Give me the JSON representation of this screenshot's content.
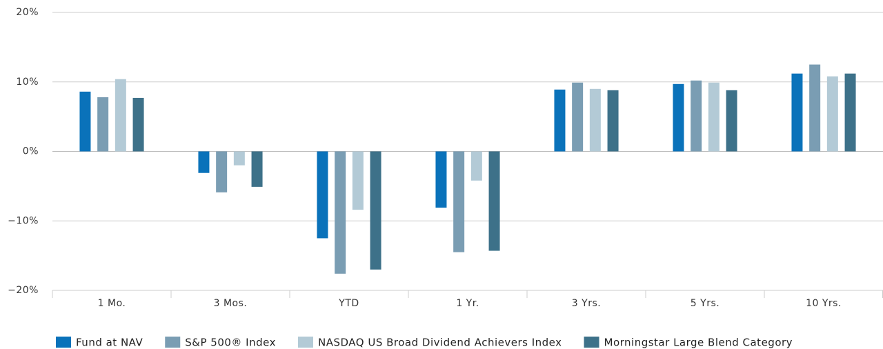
{
  "chart_data": {
    "type": "bar",
    "categories": [
      "1 Mo.",
      "3 Mos.",
      "YTD",
      "1 Yr.",
      "3 Yrs.",
      "5 Yrs.",
      "10 Yrs."
    ],
    "series": [
      {
        "name": "Fund at NAV",
        "color": "#0a72ba",
        "values": [
          8.6,
          -3.1,
          -12.5,
          -8.1,
          8.9,
          9.7,
          11.2
        ]
      },
      {
        "name": "S&P 500® Index",
        "color": "#7a9db3",
        "values": [
          7.8,
          -5.9,
          -17.6,
          -14.5,
          9.9,
          10.2,
          12.5
        ]
      },
      {
        "name": "NASDAQ US Broad Dividend Achievers Index",
        "color": "#b3cad6",
        "values": [
          10.4,
          -2.0,
          -8.4,
          -4.2,
          9.0,
          9.9,
          10.8
        ]
      },
      {
        "name": "Morningstar Large Blend Category",
        "color": "#3d7189",
        "values": [
          7.7,
          -5.1,
          -17.0,
          -14.3,
          8.8,
          8.8,
          11.2
        ]
      }
    ],
    "ylim": [
      -20,
      20
    ],
    "yticks": [
      {
        "value": -20,
        "label": "−20%"
      },
      {
        "value": -10,
        "label": "−10%"
      },
      {
        "value": 0,
        "label": "0%"
      },
      {
        "value": 10,
        "label": "10%"
      },
      {
        "value": 20,
        "label": "20%"
      }
    ],
    "grid": true,
    "legend": "bottom"
  }
}
